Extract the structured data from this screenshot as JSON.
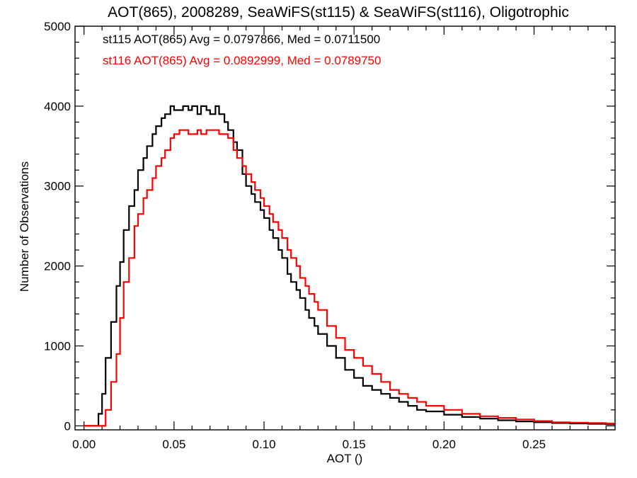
{
  "chart_data": {
    "type": "line",
    "title": "AOT(865), 2008289, SeaWiFS(st115) & SeaWiFS(st116), Oligotrophic",
    "xlabel": "AOT ()",
    "ylabel": "Number of Observations",
    "xlim": [
      -0.005,
      0.295
    ],
    "ylim": [
      -50,
      5000
    ],
    "x_ticks": [
      "0.00",
      "0.05",
      "0.10",
      "0.15",
      "0.20",
      "0.25"
    ],
    "y_ticks": [
      "0",
      "1000",
      "2000",
      "3000",
      "4000",
      "5000"
    ],
    "grid": false,
    "legend": [
      {
        "text": "st115 AOT(865) Avg = 0.0797866, Med = 0.0711500",
        "color": "#000000"
      },
      {
        "text": "st116 AOT(865) Avg = 0.0892999, Med = 0.0789750",
        "color": "#ff0000"
      }
    ],
    "series": [
      {
        "color": "#000000",
        "x": [
          0.0,
          0.005,
          0.008,
          0.01,
          0.012,
          0.015,
          0.018,
          0.02,
          0.022,
          0.025,
          0.028,
          0.03,
          0.033,
          0.035,
          0.038,
          0.04,
          0.043,
          0.045,
          0.048,
          0.05,
          0.053,
          0.055,
          0.058,
          0.06,
          0.063,
          0.065,
          0.068,
          0.07,
          0.073,
          0.075,
          0.078,
          0.08,
          0.083,
          0.085,
          0.088,
          0.09,
          0.093,
          0.095,
          0.098,
          0.1,
          0.103,
          0.105,
          0.108,
          0.11,
          0.113,
          0.115,
          0.118,
          0.12,
          0.123,
          0.125,
          0.128,
          0.13,
          0.135,
          0.14,
          0.145,
          0.15,
          0.155,
          0.16,
          0.165,
          0.17,
          0.175,
          0.18,
          0.185,
          0.19,
          0.2,
          0.21,
          0.22,
          0.23,
          0.24,
          0.25,
          0.26,
          0.27,
          0.28,
          0.29,
          0.295
        ],
        "values": [
          0,
          0,
          150,
          400,
          850,
          1300,
          1750,
          2050,
          2450,
          2750,
          2950,
          3200,
          3350,
          3500,
          3650,
          3750,
          3850,
          3900,
          4000,
          3950,
          3950,
          4000,
          3950,
          4000,
          3900,
          4000,
          3950,
          3900,
          4000,
          3900,
          3800,
          3700,
          3550,
          3450,
          3150,
          3000,
          2900,
          2800,
          2700,
          2600,
          2450,
          2350,
          2200,
          2100,
          1900,
          1800,
          1700,
          1600,
          1450,
          1350,
          1250,
          1150,
          1000,
          850,
          700,
          600,
          500,
          450,
          400,
          350,
          300,
          250,
          200,
          180,
          140,
          110,
          90,
          70,
          55,
          45,
          35,
          30,
          25,
          20,
          20
        ]
      },
      {
        "color": "#ff0000",
        "x": [
          0.0,
          0.005,
          0.01,
          0.012,
          0.015,
          0.018,
          0.02,
          0.022,
          0.025,
          0.028,
          0.03,
          0.033,
          0.035,
          0.038,
          0.04,
          0.043,
          0.045,
          0.048,
          0.05,
          0.053,
          0.055,
          0.058,
          0.06,
          0.063,
          0.065,
          0.068,
          0.07,
          0.073,
          0.075,
          0.078,
          0.08,
          0.083,
          0.085,
          0.088,
          0.09,
          0.093,
          0.095,
          0.098,
          0.1,
          0.103,
          0.105,
          0.108,
          0.11,
          0.113,
          0.115,
          0.118,
          0.12,
          0.123,
          0.125,
          0.128,
          0.13,
          0.135,
          0.14,
          0.145,
          0.15,
          0.155,
          0.16,
          0.165,
          0.17,
          0.175,
          0.18,
          0.185,
          0.19,
          0.2,
          0.21,
          0.22,
          0.23,
          0.24,
          0.25,
          0.26,
          0.27,
          0.28,
          0.29,
          0.295
        ],
        "values": [
          0,
          0,
          0,
          200,
          550,
          900,
          1350,
          1800,
          2100,
          2500,
          2650,
          2850,
          2950,
          3100,
          3250,
          3350,
          3450,
          3600,
          3650,
          3700,
          3700,
          3650,
          3650,
          3700,
          3650,
          3700,
          3700,
          3700,
          3650,
          3650,
          3600,
          3450,
          3350,
          3250,
          3150,
          3050,
          2950,
          2850,
          2750,
          2650,
          2550,
          2450,
          2350,
          2200,
          2100,
          2000,
          1850,
          1750,
          1650,
          1550,
          1450,
          1250,
          1100,
          950,
          850,
          750,
          650,
          550,
          450,
          400,
          350,
          300,
          250,
          200,
          150,
          120,
          100,
          80,
          60,
          45,
          40,
          35,
          30,
          30
        ]
      }
    ]
  }
}
